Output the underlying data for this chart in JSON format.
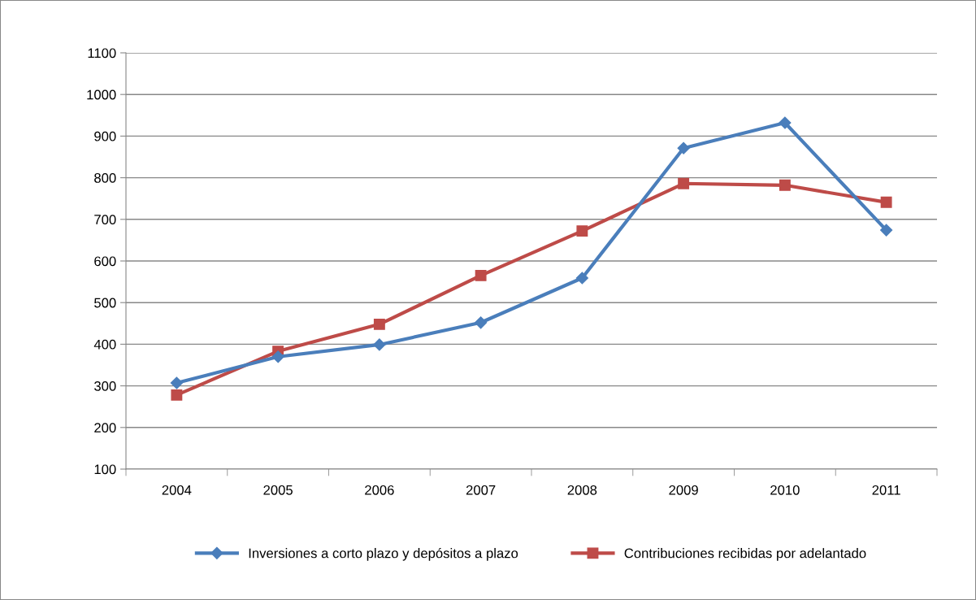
{
  "chart_data": {
    "type": "line",
    "categories": [
      "2004",
      "2005",
      "2006",
      "2007",
      "2008",
      "2009",
      "2010",
      "2011"
    ],
    "series": [
      {
        "name": "Inversiones a corto plazo y depósitos a plazo",
        "color": "#4a7ebb",
        "marker": "diamond",
        "values": [
          307,
          370,
          399,
          452,
          559,
          871,
          932,
          674
        ]
      },
      {
        "name": "Contribuciones recibidas por adelantado",
        "color": "#be4b48",
        "marker": "square",
        "values": [
          278,
          383,
          448,
          565,
          672,
          786,
          782,
          741
        ]
      }
    ],
    "ylim": [
      100,
      1100
    ],
    "yticks": [
      100,
      200,
      300,
      400,
      500,
      600,
      700,
      800,
      900,
      1000,
      1100
    ],
    "grid": "y",
    "legend": "bottom",
    "line_style": "solid"
  }
}
